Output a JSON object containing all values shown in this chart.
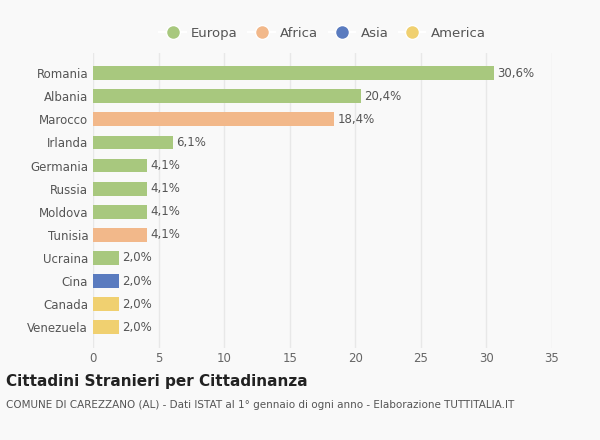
{
  "categories": [
    "Romania",
    "Albania",
    "Marocco",
    "Irlanda",
    "Germania",
    "Russia",
    "Moldova",
    "Tunisia",
    "Ucraina",
    "Cina",
    "Canada",
    "Venezuela"
  ],
  "values": [
    30.6,
    20.4,
    18.4,
    6.1,
    4.1,
    4.1,
    4.1,
    4.1,
    2.0,
    2.0,
    2.0,
    2.0
  ],
  "labels": [
    "30,6%",
    "20,4%",
    "18,4%",
    "6,1%",
    "4,1%",
    "4,1%",
    "4,1%",
    "4,1%",
    "2,0%",
    "2,0%",
    "2,0%",
    "2,0%"
  ],
  "continents": [
    "Europa",
    "Europa",
    "Africa",
    "Europa",
    "Europa",
    "Europa",
    "Europa",
    "Africa",
    "Europa",
    "Asia",
    "America",
    "America"
  ],
  "colors": {
    "Europa": "#a8c87e",
    "Africa": "#f2b88a",
    "Asia": "#5a7bbf",
    "America": "#f0d070"
  },
  "xlim": [
    0,
    35
  ],
  "xticks": [
    0,
    5,
    10,
    15,
    20,
    25,
    30,
    35
  ],
  "title": "Cittadini Stranieri per Cittadinanza",
  "subtitle": "COMUNE DI CAREZZANO (AL) - Dati ISTAT al 1° gennaio di ogni anno - Elaborazione TUTTITALIA.IT",
  "background_color": "#f9f9f9",
  "grid_color": "#e8e8e8",
  "bar_height": 0.6,
  "title_fontsize": 11,
  "subtitle_fontsize": 7.5,
  "label_fontsize": 8.5,
  "tick_fontsize": 8.5,
  "legend_fontsize": 9.5
}
